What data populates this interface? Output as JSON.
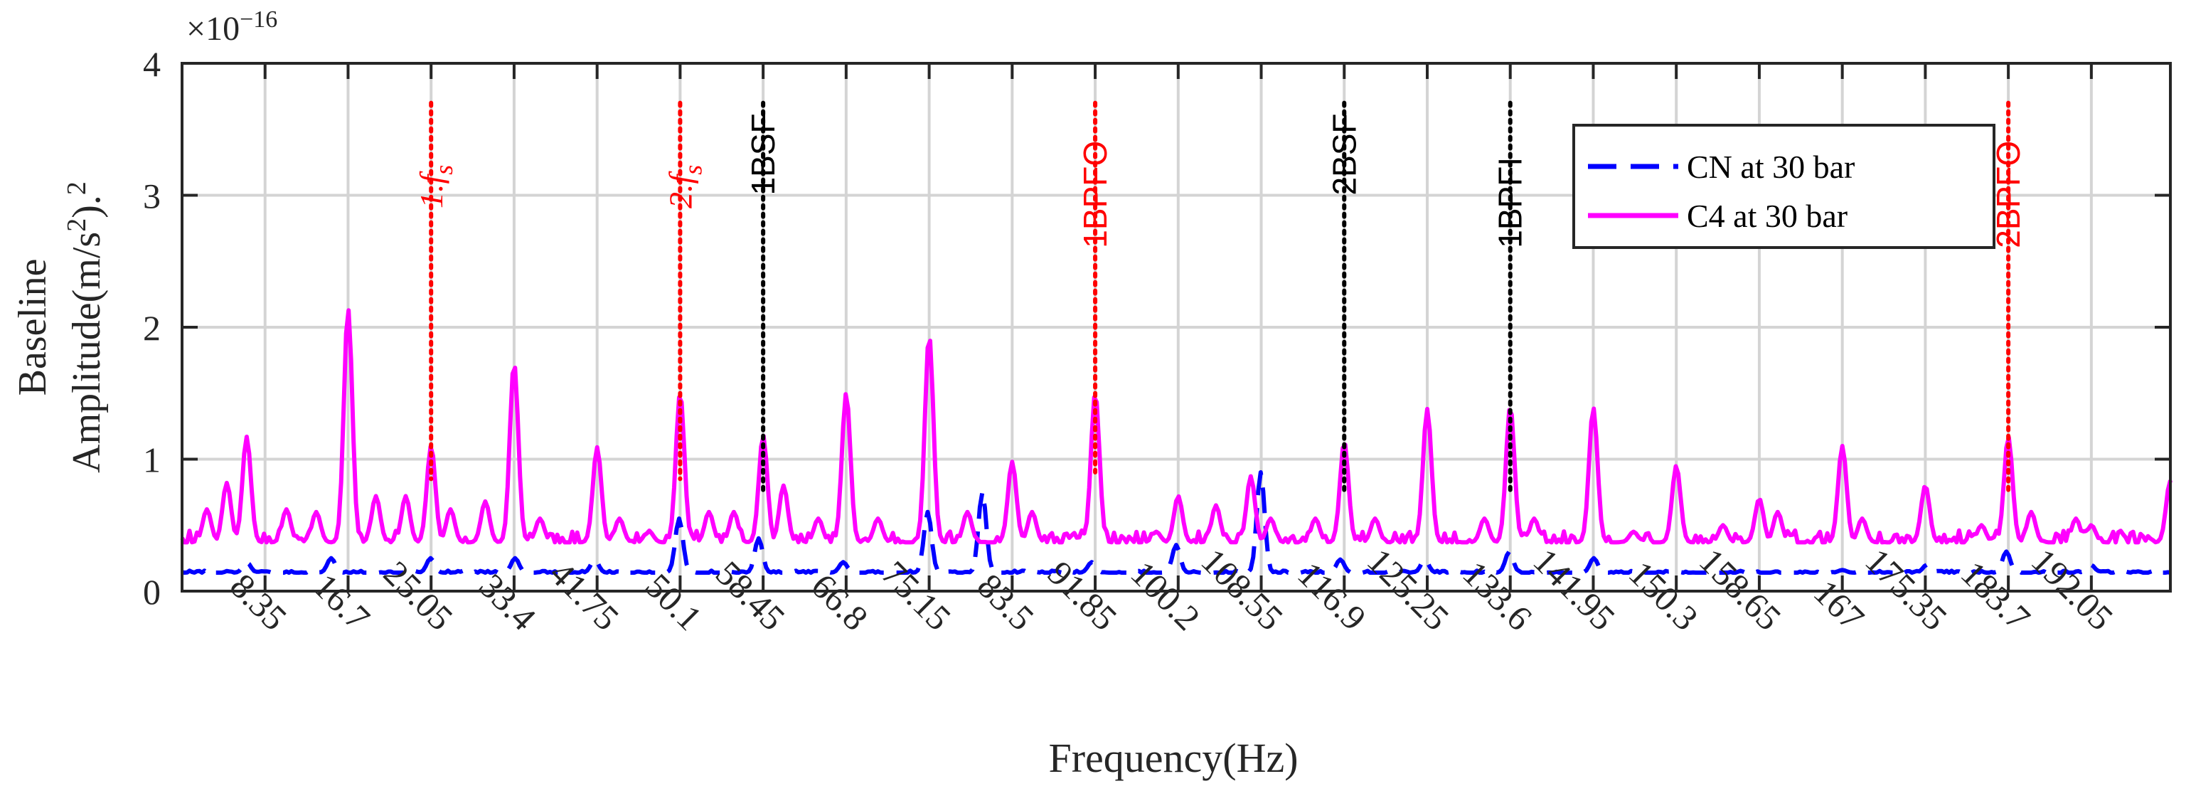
{
  "chart_data": {
    "type": "line",
    "title": "",
    "xlabel": "Frequency(Hz)",
    "ylabel_line1": "Baseline",
    "ylabel_line2": "Amplitude(m/s²).²",
    "ylabel_parts": {
      "base": "Amplitude(m/s",
      "sup1": "2",
      "mid": ").",
      "sup2": "2"
    },
    "y_exponent": "×10⁻¹⁶",
    "y_exponent_parts": {
      "base": "×10",
      "sup": "−16"
    },
    "xlim": [
      0,
      200
    ],
    "ylim": [
      0,
      4
    ],
    "grid": true,
    "yticks": [
      0,
      1,
      2,
      3,
      4
    ],
    "ytick_labels": [
      "0",
      "1",
      "2",
      "3",
      "4"
    ],
    "xticks": [
      8.35,
      16.7,
      25.05,
      33.4,
      41.75,
      50.1,
      58.45,
      66.8,
      75.15,
      83.5,
      91.85,
      100.2,
      108.55,
      116.9,
      125.25,
      133.6,
      141.95,
      150.3,
      158.65,
      167,
      175.35,
      183.7,
      192.05
    ],
    "xtick_labels": [
      "8.35",
      "16.7",
      "25.05",
      "33.4",
      "41.75",
      "50.1",
      "58.45",
      "66.8",
      "75.15",
      "83.5",
      "91.85",
      "100.2",
      "108.55",
      "116.9",
      "125.25",
      "133.6",
      "141.95",
      "150.3",
      "158.65",
      "167",
      "175.35",
      "183.7",
      "192.05"
    ],
    "legend_position": "top-right",
    "series": [
      {
        "name": "CN at 30 bar",
        "color": "#0000ff",
        "style": "dashed",
        "baseline": 0.14,
        "peaks": [
          [
            6.5,
            0.22
          ],
          [
            15,
            0.25
          ],
          [
            25,
            0.25
          ],
          [
            33.5,
            0.25
          ],
          [
            41.5,
            0.24
          ],
          [
            50,
            0.55
          ],
          [
            58,
            0.4
          ],
          [
            66.5,
            0.22
          ],
          [
            75,
            0.6
          ],
          [
            80.5,
            0.75
          ],
          [
            91.5,
            0.22
          ],
          [
            100,
            0.35
          ],
          [
            108.5,
            0.9
          ],
          [
            116.5,
            0.24
          ],
          [
            125,
            0.24
          ],
          [
            133.5,
            0.3
          ],
          [
            142,
            0.25
          ],
          [
            167,
            0.16
          ],
          [
            175.5,
            0.2
          ],
          [
            183.5,
            0.3
          ],
          [
            192,
            0.2
          ]
        ]
      },
      {
        "name": "C4 at 30 bar",
        "color": "#ff00ff",
        "style": "solid",
        "baseline": 0.37,
        "peaks": [
          [
            2.5,
            0.62
          ],
          [
            4.5,
            0.82
          ],
          [
            6.5,
            1.17
          ],
          [
            10.5,
            0.62
          ],
          [
            13.5,
            0.6
          ],
          [
            16.7,
            2.14
          ],
          [
            19.5,
            0.72
          ],
          [
            22.5,
            0.72
          ],
          [
            25.05,
            1.1
          ],
          [
            27,
            0.62
          ],
          [
            30.5,
            0.68
          ],
          [
            33.4,
            1.73
          ],
          [
            36,
            0.55
          ],
          [
            41.75,
            1.09
          ],
          [
            44,
            0.55
          ],
          [
            47,
            0.45
          ],
          [
            50.1,
            1.5
          ],
          [
            53,
            0.6
          ],
          [
            55.5,
            0.6
          ],
          [
            58.45,
            1.18
          ],
          [
            60.5,
            0.8
          ],
          [
            64,
            0.55
          ],
          [
            66.8,
            1.5
          ],
          [
            70,
            0.55
          ],
          [
            75.15,
            1.94
          ],
          [
            79,
            0.6
          ],
          [
            83.5,
            0.98
          ],
          [
            85.5,
            0.6
          ],
          [
            91.85,
            1.5
          ],
          [
            98,
            0.45
          ],
          [
            100.2,
            0.72
          ],
          [
            104,
            0.65
          ],
          [
            107.5,
            0.87
          ],
          [
            109.5,
            0.55
          ],
          [
            114,
            0.55
          ],
          [
            116.9,
            1.13
          ],
          [
            120,
            0.55
          ],
          [
            125.25,
            1.38
          ],
          [
            131,
            0.55
          ],
          [
            133.6,
            1.4
          ],
          [
            136,
            0.55
          ],
          [
            141.95,
            1.39
          ],
          [
            146,
            0.45
          ],
          [
            150.3,
            0.95
          ],
          [
            155,
            0.5
          ],
          [
            158.65,
            0.7
          ],
          [
            160.5,
            0.6
          ],
          [
            167,
            1.1
          ],
          [
            169,
            0.55
          ],
          [
            175.35,
            0.8
          ],
          [
            181,
            0.5
          ],
          [
            183.7,
            1.17
          ],
          [
            186,
            0.6
          ],
          [
            190.5,
            0.55
          ],
          [
            192.05,
            0.5
          ],
          [
            200,
            0.84
          ]
        ]
      }
    ],
    "annotations": [
      {
        "x": 25.05,
        "label": "1.f",
        "sub": "s",
        "color": "#ff0000"
      },
      {
        "x": 50.1,
        "label": "2.f",
        "sub": "s",
        "color": "#ff0000"
      },
      {
        "x": 58.45,
        "label": "1BSF",
        "color": "#000000"
      },
      {
        "x": 91.85,
        "label": "1BPFO",
        "color": "#ff0000"
      },
      {
        "x": 116.9,
        "label": "2BSF",
        "color": "#000000"
      },
      {
        "x": 133.6,
        "label": "1BPFI",
        "color": "#000000"
      },
      {
        "x": 183.7,
        "label": "2BPFO",
        "color": "#ff0000"
      }
    ]
  }
}
